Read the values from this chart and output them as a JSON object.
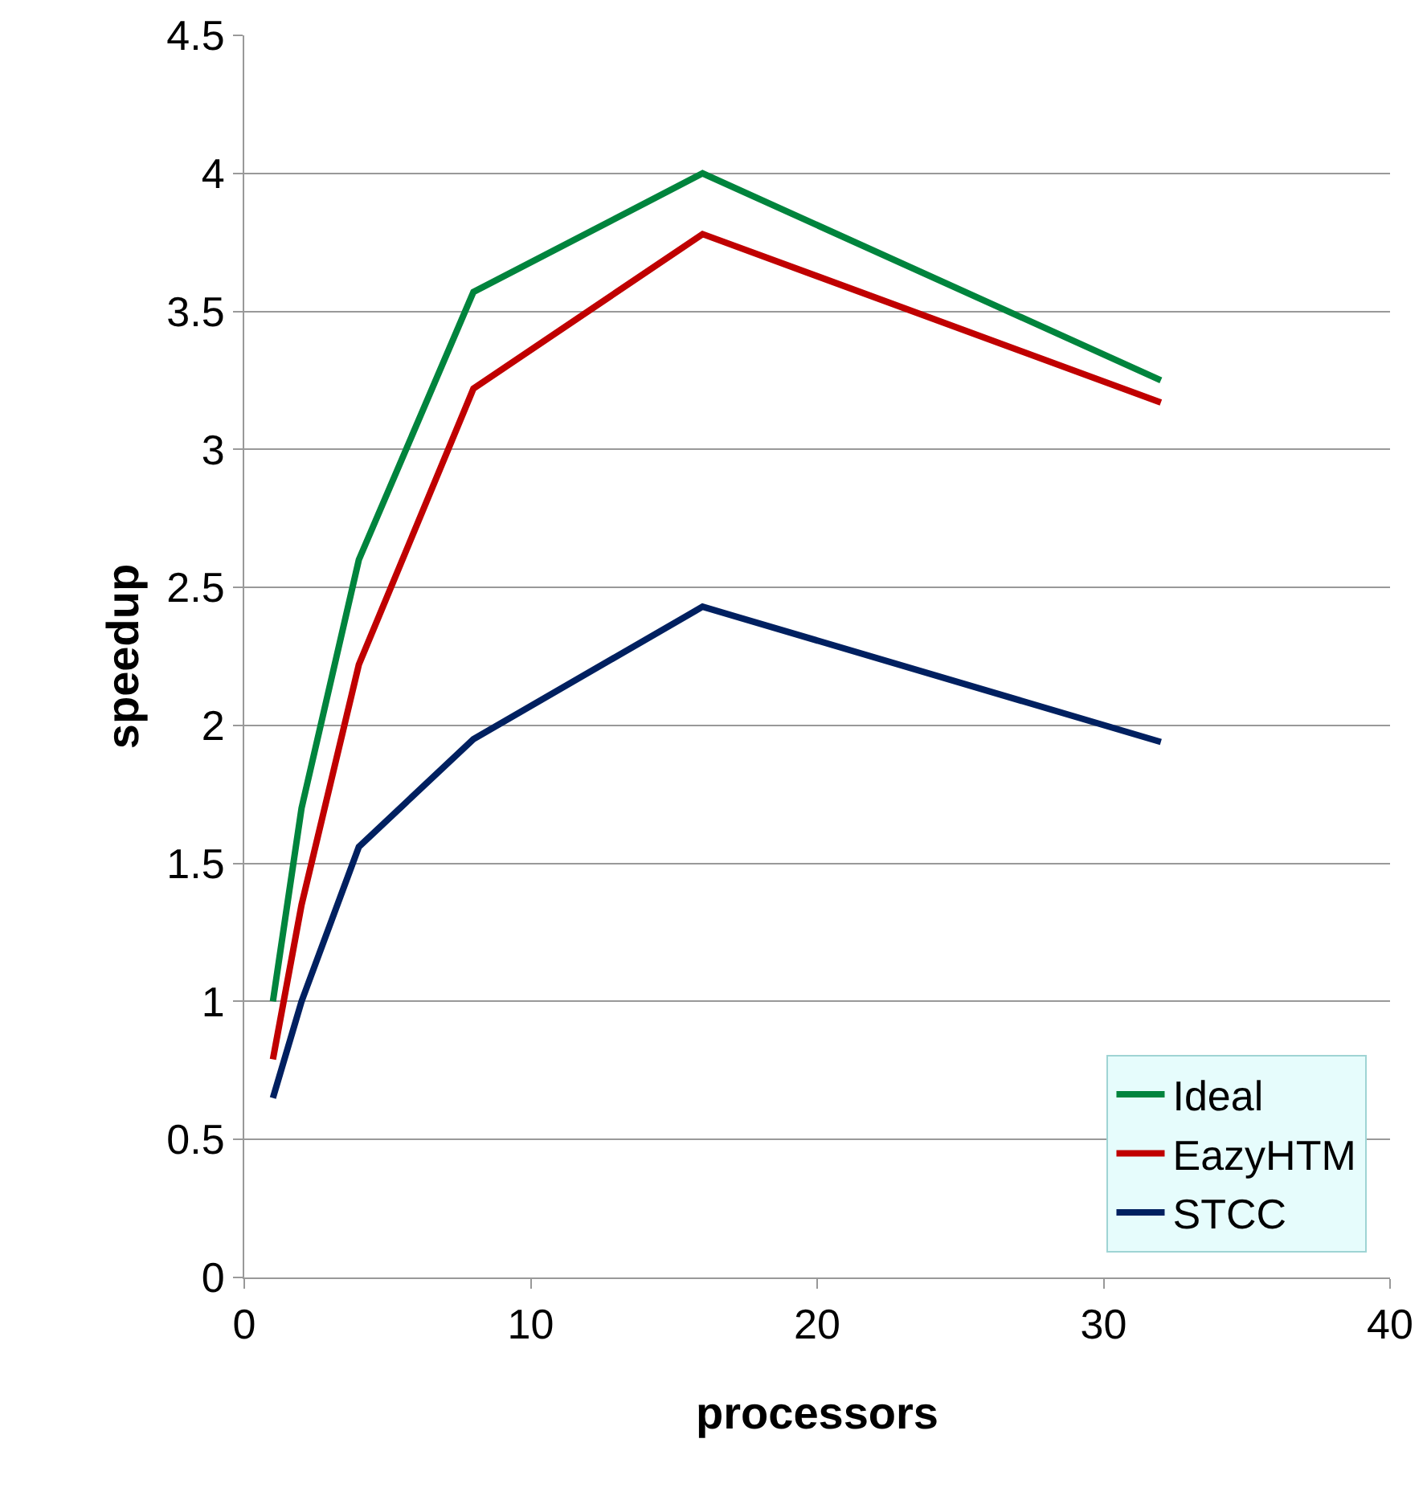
{
  "chart_data": {
    "type": "line",
    "xlabel": "processors",
    "ylabel": "speedup",
    "x": [
      1,
      2,
      4,
      8,
      16,
      32
    ],
    "series": [
      {
        "name": "Ideal",
        "color": "#00843d",
        "values": [
          1.0,
          1.7,
          2.6,
          3.57,
          4.0,
          3.25
        ]
      },
      {
        "name": "EazyHTM",
        "color": "#c00000",
        "values": [
          0.79,
          1.35,
          2.22,
          3.22,
          3.78,
          3.17
        ]
      },
      {
        "name": "STCC",
        "color": "#002060",
        "values": [
          0.65,
          1.0,
          1.56,
          1.95,
          2.43,
          1.94
        ]
      }
    ],
    "xlim": [
      0,
      40
    ],
    "xticks": [
      0,
      10,
      20,
      30,
      40
    ],
    "ylim": [
      0,
      4.5
    ],
    "yticks": [
      0,
      0.5,
      1,
      1.5,
      2,
      2.5,
      3,
      3.5,
      4,
      4.5
    ],
    "grid": "y",
    "legend": "bottom right",
    "marker": "none",
    "line_style": "solid"
  }
}
